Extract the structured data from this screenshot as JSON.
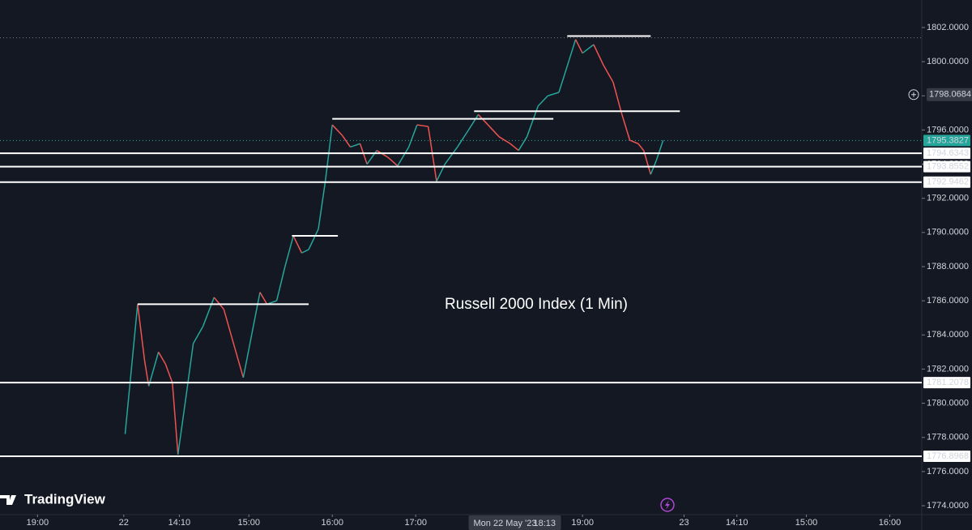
{
  "chart_data": {
    "type": "price-line",
    "title": "Russell 2000 Index (1 Min)",
    "brand": "TradingView",
    "crosshair_time": "Mon 22 May '23",
    "crosshair_clock": "18:13",
    "crosshair_x": 283,
    "crosshair_price": 1798.0684,
    "last_price": 1795.3827,
    "high_line": 1801.4,
    "up_color": "#26a69a",
    "down_color": "#ef5350",
    "xlim": [
      -89,
      574
    ],
    "ylim": [
      1773.48,
      1803.61
    ],
    "xticks": [
      {
        "value": -62,
        "label": "19:00"
      },
      {
        "value": 0,
        "label": "22"
      },
      {
        "value": 40,
        "label": "14:10"
      },
      {
        "value": 90,
        "label": "15:00"
      },
      {
        "value": 150,
        "label": "16:00"
      },
      {
        "value": 210,
        "label": "17:00"
      },
      {
        "value": 330,
        "label": "19:00"
      },
      {
        "value": 403,
        "label": "23"
      },
      {
        "value": 441,
        "label": "14:10"
      },
      {
        "value": 491,
        "label": "15:00"
      },
      {
        "value": 551,
        "label": "16:00"
      }
    ],
    "yticks": [
      {
        "value": 1774,
        "label": "1774.0000"
      },
      {
        "value": 1776,
        "label": "1776.0000"
      },
      {
        "value": 1778,
        "label": "1778.0000"
      },
      {
        "value": 1780,
        "label": "1780.0000"
      },
      {
        "value": 1782,
        "label": "1782.0000"
      },
      {
        "value": 1784,
        "label": "1784.0000"
      },
      {
        "value": 1786,
        "label": "1786.0000"
      },
      {
        "value": 1788,
        "label": "1788.0000"
      },
      {
        "value": 1790,
        "label": "1790.0000"
      },
      {
        "value": 1792,
        "label": "1792.0000"
      },
      {
        "value": 1794,
        "label": "1794.0000"
      },
      {
        "value": 1796,
        "label": "1796.0000"
      },
      {
        "value": 1798,
        "label": "1798.0000"
      },
      {
        "value": 1800,
        "label": "1800.0000"
      },
      {
        "value": 1802,
        "label": "1802.0000"
      }
    ],
    "hlines": [
      1794.6343,
      1793.8552,
      1792.9462,
      1781.2078,
      1776.8968
    ],
    "segments": [
      {
        "value": 1801.5,
        "x": [
          319,
          379
        ]
      },
      {
        "value": 1797.1,
        "x": [
          252,
          400
        ]
      },
      {
        "value": 1796.65,
        "x": [
          150,
          309
        ]
      },
      {
        "value": 1789.8,
        "x": [
          121,
          154
        ]
      },
      {
        "value": 1785.8,
        "x": [
          10,
          133
        ]
      }
    ],
    "x": [
      1,
      10,
      15,
      18,
      25,
      30,
      35,
      39,
      45,
      50,
      57,
      65,
      72,
      80,
      86,
      92,
      98,
      103,
      110,
      116,
      122,
      128,
      133,
      140,
      145,
      150,
      157,
      163,
      170,
      175,
      182,
      190,
      197,
      205,
      211,
      219,
      225,
      231,
      240,
      248,
      255,
      262,
      270,
      278,
      284,
      290,
      298,
      305,
      313,
      320,
      325,
      330,
      338,
      345,
      352,
      358,
      364,
      370,
      374,
      379,
      383,
      388
    ],
    "values": [
      1778.2,
      1785.8,
      1782.5,
      1781.0,
      1783.0,
      1782.3,
      1781.2,
      1777.0,
      1780.5,
      1783.5,
      1784.5,
      1786.2,
      1785.5,
      1783.2,
      1781.5,
      1784.0,
      1786.5,
      1785.8,
      1786.0,
      1788.0,
      1789.8,
      1788.8,
      1789.0,
      1790.2,
      1793.0,
      1796.3,
      1795.7,
      1795.0,
      1795.2,
      1794.0,
      1794.8,
      1794.4,
      1793.9,
      1795.0,
      1796.3,
      1796.2,
      1793.0,
      1794.0,
      1795.0,
      1796.0,
      1796.9,
      1796.3,
      1795.6,
      1795.2,
      1794.8,
      1795.6,
      1797.4,
      1798.0,
      1798.2,
      1800.0,
      1801.3,
      1800.5,
      1801.0,
      1799.8,
      1798.8,
      1797.0,
      1795.4,
      1795.2,
      1794.8,
      1793.4,
      1794.2,
      1795.4
    ]
  }
}
